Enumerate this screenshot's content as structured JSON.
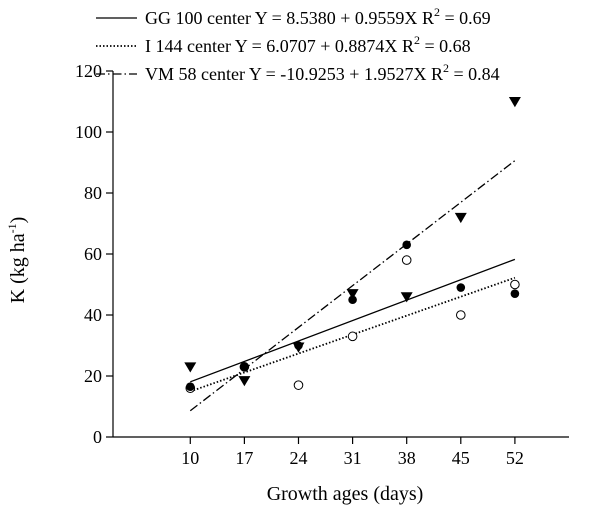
{
  "chart_data": {
    "type": "scatter",
    "xlabel": "Growth ages (days)",
    "ylabel": "K (kg ha-1)",
    "ylabel_parts": {
      "base": "K (kg ha",
      "sup": "-1",
      "close": ")"
    },
    "xticks": [
      10,
      17,
      24,
      31,
      38,
      45,
      52
    ],
    "yticks": [
      0,
      20,
      40,
      60,
      80,
      100,
      120
    ],
    "xlim": [
      0,
      59
    ],
    "ylim": [
      0,
      120
    ],
    "grid": false,
    "legend_position": "top",
    "series": [
      {
        "name": "GG 100 center",
        "equation": "Y = 8.5380 + 0.9559X",
        "r2_label": "R",
        "r2_value": "= 0.69",
        "marker": "filled-circle",
        "line_style": "solid",
        "intercept": 8.538,
        "slope": 0.9559,
        "x": [
          10,
          17,
          24,
          31,
          38,
          45,
          52
        ],
        "y": [
          16.5,
          23,
          30,
          45,
          63,
          49,
          47
        ]
      },
      {
        "name": "I 144 center",
        "equation": "Y = 6.0707 + 0.8874X",
        "r2_label": "R",
        "r2_value": "= 0.68",
        "marker": "open-circle",
        "line_style": "dotted",
        "intercept": 6.0707,
        "slope": 0.8874,
        "x": [
          10,
          17,
          24,
          31,
          38,
          45,
          52
        ],
        "y": [
          16,
          23,
          17,
          33,
          58,
          40,
          50
        ]
      },
      {
        "name": "VM 58 center",
        "equation": "Y = -10.9253 + 1.9527X",
        "r2_label": "R",
        "r2_value": "= 0.84",
        "marker": "filled-triangle-down",
        "line_style": "dash-dot",
        "intercept": -10.9253,
        "slope": 1.9527,
        "x": [
          10,
          17,
          24,
          31,
          38,
          45,
          52
        ],
        "y": [
          23,
          18.5,
          29.5,
          47,
          46,
          72,
          110
        ]
      }
    ]
  }
}
